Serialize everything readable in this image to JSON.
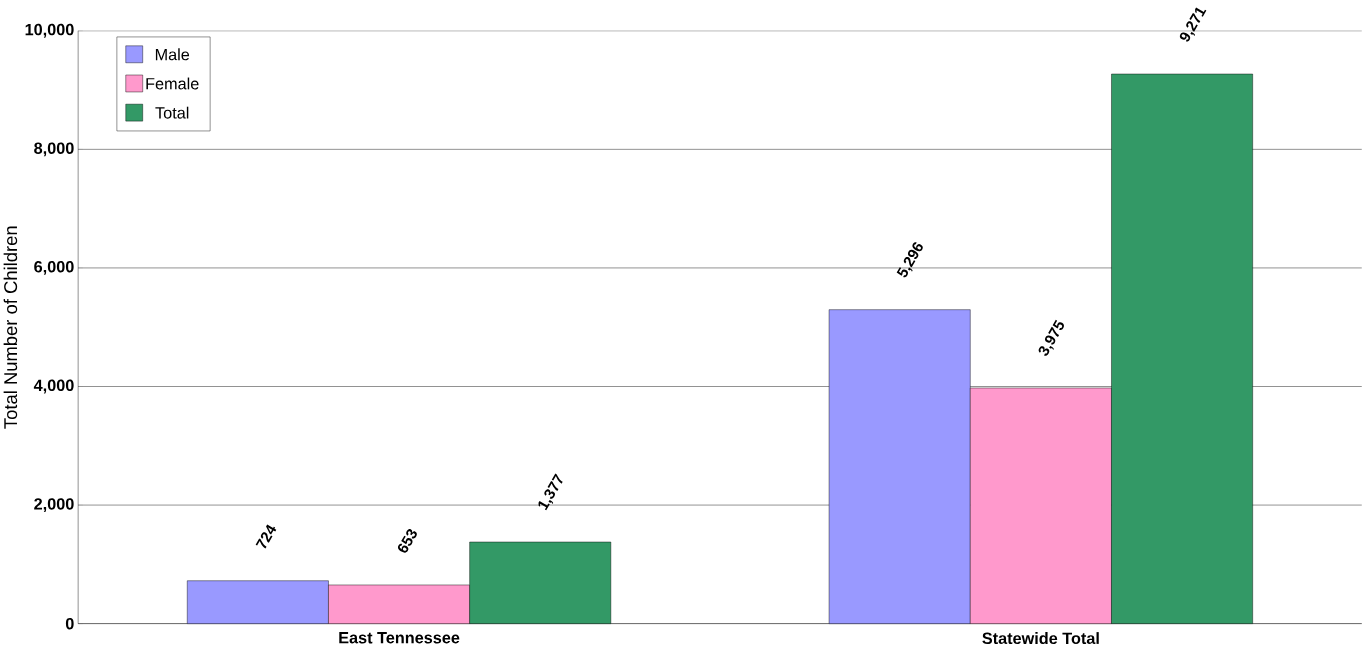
{
  "chart_data": {
    "type": "bar",
    "ylabel": "Total Number of Children",
    "categories": [
      "East Tennessee",
      "Statewide Total"
    ],
    "series": [
      {
        "name": "Male",
        "color": "#9999ff",
        "values": [
          724,
          5296
        ],
        "value_labels": [
          "724",
          "5,296"
        ]
      },
      {
        "name": "Female",
        "color": "#ff99cc",
        "values": [
          653,
          3975
        ],
        "value_labels": [
          "653",
          "3,975"
        ]
      },
      {
        "name": "Total",
        "color": "#339966",
        "values": [
          1377,
          9271
        ],
        "value_labels": [
          "1,377",
          "9,271"
        ]
      }
    ],
    "ylim": [
      0,
      10000
    ],
    "yticks": [
      0,
      {
        "value": 2000,
        "label": "2,000"
      },
      {
        "value": 4000,
        "label": "4,000"
      },
      {
        "value": 6000,
        "label": "6,000"
      },
      {
        "value": 8000,
        "label": "8,000"
      },
      {
        "value": 10000,
        "label": "10,000"
      }
    ],
    "grid": "y",
    "legend": "top left"
  }
}
